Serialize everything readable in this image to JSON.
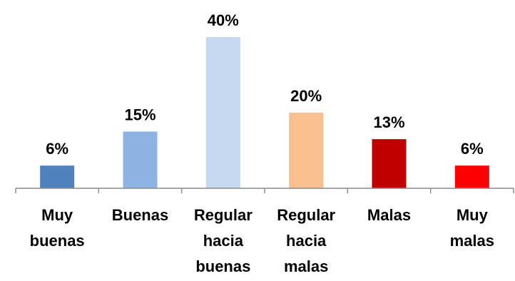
{
  "chart_data": {
    "type": "bar",
    "categories": [
      [
        "Muy",
        "buenas"
      ],
      [
        "Buenas"
      ],
      [
        "Regular",
        "hacia",
        "buenas"
      ],
      [
        "Regular",
        "hacia",
        "malas"
      ],
      [
        "Malas"
      ],
      [
        "Muy",
        "malas"
      ]
    ],
    "values": [
      6,
      15,
      40,
      20,
      13,
      6
    ],
    "value_labels": [
      "6%",
      "15%",
      "40%",
      "20%",
      "13%",
      "6%"
    ],
    "colors": [
      "#4f81bd",
      "#8db3e2",
      "#c6d9f1",
      "#fac090",
      "#c00000",
      "#ff0000"
    ],
    "unit": "%",
    "ylim": [
      0,
      40
    ],
    "grid": false,
    "legend": "none",
    "title": "",
    "xlabel": "",
    "ylabel": ""
  }
}
